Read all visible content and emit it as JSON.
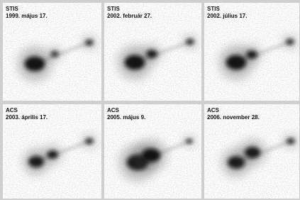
{
  "panels": [
    {
      "instrument": "STIS",
      "date": "1999. május 17."
    },
    {
      "instrument": "STIS",
      "date": "2002. február 27."
    },
    {
      "instrument": "STIS",
      "date": "2002. július 17."
    },
    {
      "instrument": "ACS",
      "date": "2003. április 17."
    },
    {
      "instrument": "ACS",
      "date": "2005. május 9."
    },
    {
      "instrument": "ACS",
      "date": "2006. november 28."
    }
  ]
}
